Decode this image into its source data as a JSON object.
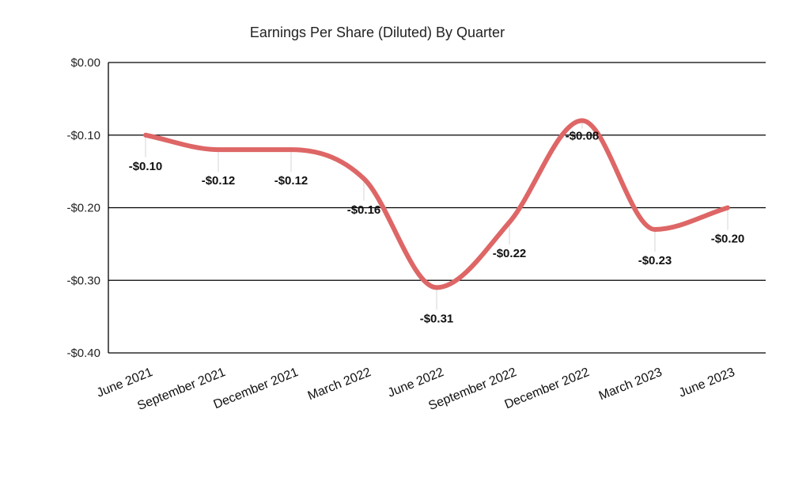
{
  "chart_data": {
    "type": "line",
    "title": "Earnings Per Share (Diluted) By Quarter",
    "xlabel": "",
    "ylabel": "",
    "categories": [
      "June 2021",
      "September 2021",
      "December 2021",
      "March 2022",
      "June 2022",
      "September 2022",
      "December 2022",
      "March 2023",
      "June 2023"
    ],
    "series": [
      {
        "values": [
          -0.1,
          -0.12,
          -0.12,
          -0.16,
          -0.31,
          -0.22,
          -0.08,
          -0.23,
          -0.2
        ],
        "data_labels": [
          "-$0.10",
          "-$0.12",
          "-$0.12",
          "-$0.16",
          "-$0.31",
          "-$0.22",
          "-$0.08",
          "-$0.23",
          "-$0.20"
        ],
        "color": "#de6666"
      }
    ],
    "ylim": [
      -0.4,
      0.0
    ],
    "yticks": [
      0.0,
      -0.1,
      -0.2,
      -0.3,
      -0.4
    ],
    "ytick_labels": [
      "$0.00",
      "-$0.10",
      "-$0.20",
      "-$0.30",
      "-$0.40"
    ],
    "grid": true,
    "legend": "none",
    "smooth": true
  }
}
